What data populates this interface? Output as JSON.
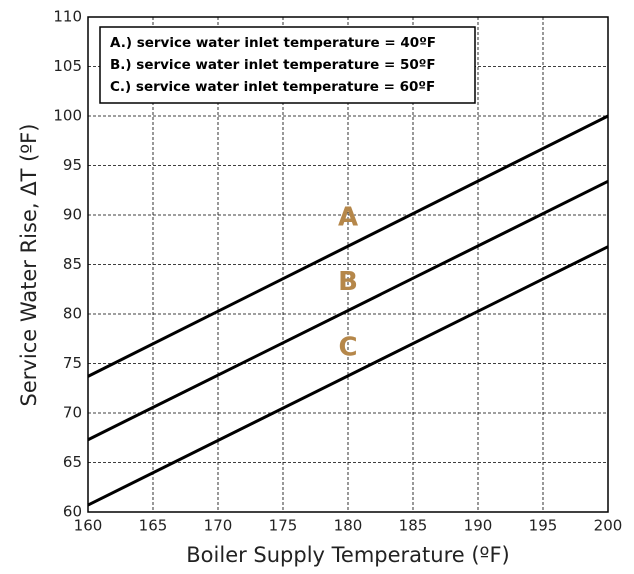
{
  "chart_data": {
    "type": "line",
    "x": [
      160,
      200
    ],
    "series": [
      {
        "name": "A",
        "color": "#000000",
        "values": [
          73.7,
          100
        ]
      },
      {
        "name": "B",
        "color": "#000000",
        "values": [
          67.3,
          93.4
        ]
      },
      {
        "name": "C",
        "color": "#000000",
        "values": [
          60.7,
          86.8
        ]
      }
    ],
    "series_label_color": "#b5874a",
    "legend_entries": [
      "A.) service water inlet temperature = 40ºF",
      "B.) service water inlet temperature = 50ºF",
      "C.) service water inlet temperature = 60ºF"
    ],
    "legend": "upper left",
    "xlabel": "Boiler Supply Temperature (ºF)",
    "ylabel": "Service Water Rise, ΔT (ºF)",
    "xlim": [
      160,
      200
    ],
    "xticks": [
      160,
      165,
      170,
      175,
      180,
      185,
      190,
      195,
      200
    ],
    "ylim": [
      60,
      110
    ],
    "yticks": [
      60,
      65,
      70,
      75,
      80,
      85,
      90,
      95,
      100,
      105,
      110
    ],
    "grid": true
  }
}
